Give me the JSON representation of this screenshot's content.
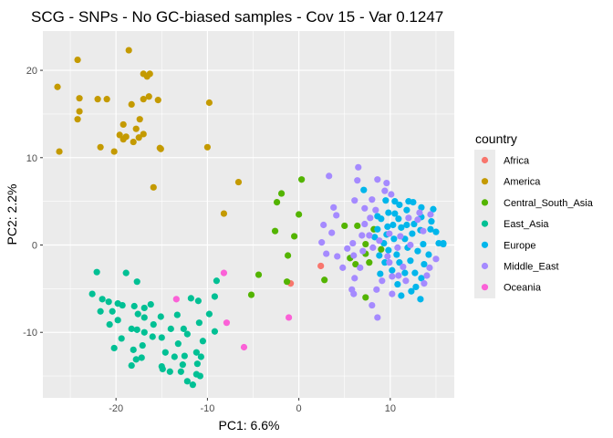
{
  "chart_data": {
    "type": "scatter",
    "title": "SCG - SNPs - No GC-biased samples - Cov 15 - Var 0.1247",
    "xlabel": "PC1: 6.6%",
    "ylabel": "PC2: 2.2%",
    "xlim": [
      -28,
      17
    ],
    "ylim": [
      -17.5,
      24.5
    ],
    "xticks": [
      -20,
      -10,
      0,
      10
    ],
    "yticks": [
      -10,
      0,
      10,
      20
    ],
    "background": "#ebebeb",
    "grid": true,
    "legend_placement": "right",
    "legend_title": "country",
    "series": [
      {
        "name": "Africa",
        "color": "#F8766D",
        "points": [
          [
            -0.9,
            -4.4
          ],
          [
            2.4,
            -2.4
          ]
        ]
      },
      {
        "name": "America",
        "color": "#C49A00",
        "points": [
          [
            -26.4,
            18.1
          ],
          [
            -24.2,
            21.2
          ],
          [
            -26.2,
            10.7
          ],
          [
            -24.0,
            16.8
          ],
          [
            -24.0,
            15.3
          ],
          [
            -24.2,
            14.4
          ],
          [
            -22.0,
            16.7
          ],
          [
            -21.0,
            16.7
          ],
          [
            -21.7,
            11.2
          ],
          [
            -20.2,
            10.7
          ],
          [
            -18.6,
            22.3
          ],
          [
            -17.0,
            19.6
          ],
          [
            -16.6,
            19.3
          ],
          [
            -16.3,
            19.6
          ],
          [
            -18.3,
            16.1
          ],
          [
            -17.0,
            16.7
          ],
          [
            -16.4,
            17.0
          ],
          [
            -19.2,
            13.8
          ],
          [
            -19.6,
            12.6
          ],
          [
            -18.9,
            12.4
          ],
          [
            -18.1,
            11.8
          ],
          [
            -17.5,
            12.3
          ],
          [
            -17.0,
            12.7
          ],
          [
            -17.8,
            13.3
          ],
          [
            -17.4,
            14.4
          ],
          [
            -19.2,
            12.1
          ],
          [
            -15.2,
            11.1
          ],
          [
            -15.1,
            11.0
          ],
          [
            -15.4,
            16.6
          ],
          [
            -15.9,
            6.6
          ],
          [
            -9.8,
            16.3
          ],
          [
            -10.0,
            11.2
          ],
          [
            -6.6,
            7.2
          ],
          [
            -8.2,
            3.6
          ]
        ]
      },
      {
        "name": "Central_South_Asia",
        "color": "#53B400",
        "points": [
          [
            0.3,
            7.5
          ],
          [
            -1.9,
            5.9
          ],
          [
            -2.4,
            4.9
          ],
          [
            0.0,
            3.5
          ],
          [
            -2.6,
            1.6
          ],
          [
            -0.5,
            1.0
          ],
          [
            -1.2,
            -1.2
          ],
          [
            -4.4,
            -3.4
          ],
          [
            -1.3,
            -4.2
          ],
          [
            -5.2,
            -5.7
          ],
          [
            2.8,
            -4.0
          ],
          [
            5.6,
            -1.5
          ],
          [
            6.2,
            -2.2
          ],
          [
            7.3,
            -1.0
          ],
          [
            7.3,
            0.1
          ],
          [
            7.7,
            -2.0
          ],
          [
            7.3,
            -6.0
          ],
          [
            6.4,
            2.2
          ],
          [
            8.2,
            1.8
          ],
          [
            9.0,
            -0.5
          ],
          [
            5.0,
            2.2
          ]
        ]
      },
      {
        "name": "East_Asia",
        "color": "#00C094",
        "points": [
          [
            -22.1,
            -3.1
          ],
          [
            -22.6,
            -5.6
          ],
          [
            -21.5,
            -6.2
          ],
          [
            -20.8,
            -6.5
          ],
          [
            -19.8,
            -6.7
          ],
          [
            -20.4,
            -7.6
          ],
          [
            -19.3,
            -6.9
          ],
          [
            -19.8,
            -8.6
          ],
          [
            -21.7,
            -7.6
          ],
          [
            -20.7,
            -9.1
          ],
          [
            -19.4,
            -10.7
          ],
          [
            -20.2,
            -11.8
          ],
          [
            -18.3,
            -9.6
          ],
          [
            -18.0,
            -7.0
          ],
          [
            -18.9,
            -3.2
          ],
          [
            -17.7,
            -9.7
          ],
          [
            -17.6,
            -7.9
          ],
          [
            -16.9,
            -7.2
          ],
          [
            -16.9,
            -8.3
          ],
          [
            -16.2,
            -6.8
          ],
          [
            -16.9,
            -10.0
          ],
          [
            -16.0,
            -10.5
          ],
          [
            -17.1,
            -11.5
          ],
          [
            -17.2,
            -12.9
          ],
          [
            -18.1,
            -12.0
          ],
          [
            -18.3,
            -13.8
          ],
          [
            -17.8,
            -13.1
          ],
          [
            -17.7,
            -4.2
          ],
          [
            -15.9,
            -9.1
          ],
          [
            -15.1,
            -8.2
          ],
          [
            -15.0,
            -10.6
          ],
          [
            -14.6,
            -12.3
          ],
          [
            -15.0,
            -13.9
          ],
          [
            -14.9,
            -14.2
          ],
          [
            -14.1,
            -14.5
          ],
          [
            -13.6,
            -12.8
          ],
          [
            -13.2,
            -11.3
          ],
          [
            -14.0,
            -9.6
          ],
          [
            -13.3,
            -8.0
          ],
          [
            -11.8,
            -6.1
          ],
          [
            -12.6,
            -9.6
          ],
          [
            -12.2,
            -10.2
          ],
          [
            -12.7,
            -13.7
          ],
          [
            -12.9,
            -14.5
          ],
          [
            -12.2,
            -15.6
          ],
          [
            -12.5,
            -12.7
          ],
          [
            -11.2,
            -12.3
          ],
          [
            -11.1,
            -13.6
          ],
          [
            -11.2,
            -14.8
          ],
          [
            -11.6,
            -16.0
          ],
          [
            -10.8,
            -15.0
          ],
          [
            -10.7,
            -12.8
          ],
          [
            -10.5,
            -11.0
          ],
          [
            -10.9,
            -8.9
          ],
          [
            -9.2,
            -9.9
          ],
          [
            -9.8,
            -7.9
          ],
          [
            -9.2,
            -5.9
          ],
          [
            -9.0,
            -4.1
          ],
          [
            -11.0,
            -6.4
          ]
        ]
      },
      {
        "name": "Europe",
        "color": "#00B6EB",
        "points": [
          [
            7.1,
            6.3
          ],
          [
            9.5,
            5.1
          ],
          [
            10.5,
            5.0
          ],
          [
            11.0,
            4.6
          ],
          [
            11.8,
            4.0
          ],
          [
            12.5,
            4.9
          ],
          [
            13.4,
            4.3
          ],
          [
            14.7,
            4.1
          ],
          [
            14.5,
            2.7
          ],
          [
            15.0,
            1.5
          ],
          [
            15.3,
            0.2
          ],
          [
            15.8,
            0.2
          ],
          [
            13.6,
            0.1
          ],
          [
            13.0,
            -0.7
          ],
          [
            13.7,
            -2.2
          ],
          [
            13.4,
            -3.8
          ],
          [
            12.8,
            -4.8
          ],
          [
            13.3,
            -6.2
          ],
          [
            12.3,
            -5.3
          ],
          [
            11.2,
            -5.8
          ],
          [
            10.8,
            -4.5
          ],
          [
            11.6,
            -3.2
          ],
          [
            12.2,
            -1.8
          ],
          [
            10.7,
            -1.1
          ],
          [
            9.8,
            -0.6
          ],
          [
            9.4,
            -2.0
          ],
          [
            8.9,
            -3.3
          ],
          [
            8.8,
            -1.2
          ],
          [
            9.6,
            1.2
          ],
          [
            10.3,
            2.3
          ],
          [
            11.2,
            2.0
          ],
          [
            11.6,
            0.7
          ],
          [
            12.4,
            1.3
          ],
          [
            12.6,
            2.4
          ],
          [
            11.8,
            2.3
          ],
          [
            10.9,
            3.0
          ],
          [
            9.7,
            2.1
          ],
          [
            8.6,
            1.8
          ],
          [
            8.3,
            0.9
          ],
          [
            9.3,
            0.2
          ],
          [
            10.4,
            0.7
          ],
          [
            11.9,
            -0.3
          ],
          [
            13.4,
            3.2
          ],
          [
            13.3,
            1.7
          ],
          [
            10.2,
            -2.9
          ],
          [
            9.0,
            3.0
          ],
          [
            14.2,
            -1.1
          ],
          [
            12.0,
            5.0
          ],
          [
            8.6,
            3.3
          ],
          [
            10.5,
            3.6
          ],
          [
            11.0,
            -2.0
          ],
          [
            12.7,
            -3.2
          ],
          [
            9.8,
            3.7
          ],
          [
            14.4,
            1.8
          ],
          [
            15.8,
            0.1
          ]
        ]
      },
      {
        "name": "Middle_East",
        "color": "#A58AFF",
        "points": [
          [
            3.3,
            7.9
          ],
          [
            6.5,
            8.9
          ],
          [
            6.4,
            7.4
          ],
          [
            8.6,
            7.5
          ],
          [
            9.6,
            7.1
          ],
          [
            6.1,
            5.1
          ],
          [
            3.8,
            4.3
          ],
          [
            4.1,
            3.4
          ],
          [
            2.7,
            2.3
          ],
          [
            3.6,
            1.4
          ],
          [
            2.5,
            0.3
          ],
          [
            3.0,
            -1.0
          ],
          [
            4.2,
            -1.3
          ],
          [
            4.8,
            -2.6
          ],
          [
            5.3,
            -0.4
          ],
          [
            6.0,
            -1.2
          ],
          [
            6.7,
            -2.6
          ],
          [
            6.1,
            -3.8
          ],
          [
            5.8,
            -5.1
          ],
          [
            6.0,
            -5.6
          ],
          [
            8.5,
            -5.1
          ],
          [
            8.0,
            -6.9
          ],
          [
            8.6,
            -8.3
          ],
          [
            9.1,
            -4.1
          ],
          [
            10.2,
            -5.6
          ],
          [
            10.2,
            -3.6
          ],
          [
            9.9,
            -2.0
          ],
          [
            7.0,
            -0.7
          ],
          [
            8.8,
            0.5
          ],
          [
            7.7,
            1.1
          ],
          [
            7.2,
            2.4
          ],
          [
            7.2,
            4.2
          ],
          [
            8.4,
            4.0
          ],
          [
            8.0,
            5.2
          ],
          [
            10.1,
            5.8
          ],
          [
            13.6,
            1.6
          ],
          [
            12.2,
            0.0
          ],
          [
            9.7,
            -1.3
          ],
          [
            13.7,
            -4.4
          ],
          [
            14.0,
            -3.5
          ],
          [
            14.3,
            -2.6
          ],
          [
            15.0,
            -1.6
          ],
          [
            13.0,
            2.9
          ],
          [
            13.2,
            3.7
          ],
          [
            9.4,
            6.2
          ],
          [
            7.8,
            3.1
          ],
          [
            9.9,
            1.3
          ],
          [
            8.1,
            -0.3
          ],
          [
            11.7,
            -4.1
          ],
          [
            10.8,
            -0.3
          ],
          [
            11.1,
            1.0
          ],
          [
            11.4,
            -2.5
          ],
          [
            14.4,
            3.5
          ],
          [
            6.9,
            1.1
          ],
          [
            5.9,
            0.2
          ],
          [
            12.0,
            3.1
          ],
          [
            10.9,
            -3.5
          ]
        ]
      },
      {
        "name": "Oceania",
        "color": "#FB61D7",
        "points": [
          [
            -13.4,
            -6.2
          ],
          [
            -8.2,
            -3.2
          ],
          [
            -7.9,
            -8.9
          ],
          [
            -6.0,
            -11.7
          ],
          [
            -1.1,
            -8.3
          ]
        ]
      }
    ]
  }
}
